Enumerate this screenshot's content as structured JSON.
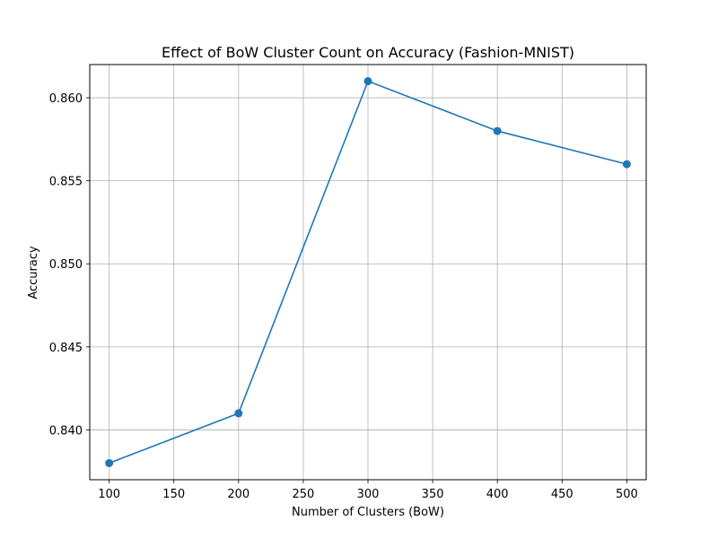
{
  "chart_data": {
    "type": "line",
    "title": "Effect of BoW Cluster Count on Accuracy (Fashion-MNIST)",
    "xlabel": "Number of Clusters (BoW)",
    "ylabel": "Accuracy",
    "x": [
      100,
      200,
      300,
      400,
      500
    ],
    "series": [
      {
        "values": [
          0.838,
          0.841,
          0.861,
          0.858,
          0.856
        ],
        "color": "#1f77b4",
        "marker": "circle"
      }
    ],
    "xlim": [
      85,
      515
    ],
    "ylim": [
      0.837,
      0.862
    ],
    "xticks": [
      100,
      150,
      200,
      250,
      300,
      350,
      400,
      450,
      500
    ],
    "xtick_labels": [
      "100",
      "150",
      "200",
      "250",
      "300",
      "350",
      "400",
      "450",
      "500"
    ],
    "yticks": [
      0.84,
      0.845,
      0.85,
      0.855,
      0.86
    ],
    "ytick_labels": [
      "0.840",
      "0.845",
      "0.850",
      "0.855",
      "0.860"
    ],
    "grid": true,
    "colors": {
      "line": "#1f77b4",
      "grid": "#b0b0b0",
      "axes": "#000000"
    }
  }
}
